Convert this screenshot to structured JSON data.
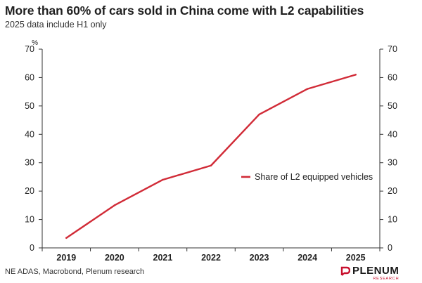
{
  "header": {
    "title": "More than 60% of cars sold in China come with L2 capabilities",
    "subtitle": "2025 data include H1 only"
  },
  "footer": {
    "source": "NE ADAS, Macrobond, Plenum research",
    "logo_name": "PLENUM",
    "logo_sub": "RESEARCH"
  },
  "colors": {
    "series": "#d12b37",
    "axis": "#333333",
    "brand": "#c8102e"
  },
  "chart_data": {
    "type": "line",
    "title": "More than 60% of cars sold in China come with L2 capabilities",
    "subtitle": "2025 data include H1 only",
    "x": [
      "2019",
      "2020",
      "2021",
      "2022",
      "2023",
      "2024",
      "2025"
    ],
    "series": [
      {
        "name": "Share of L2 equipped vehicles",
        "values": [
          3.5,
          15,
          24,
          29,
          47,
          56,
          61
        ]
      }
    ],
    "yunit": "%",
    "ylim": [
      0,
      70
    ],
    "yticks": [
      0,
      10,
      20,
      30,
      40,
      50,
      60,
      70
    ],
    "y_axis_both_sides": true,
    "grid": false,
    "legend": "inside-right"
  }
}
